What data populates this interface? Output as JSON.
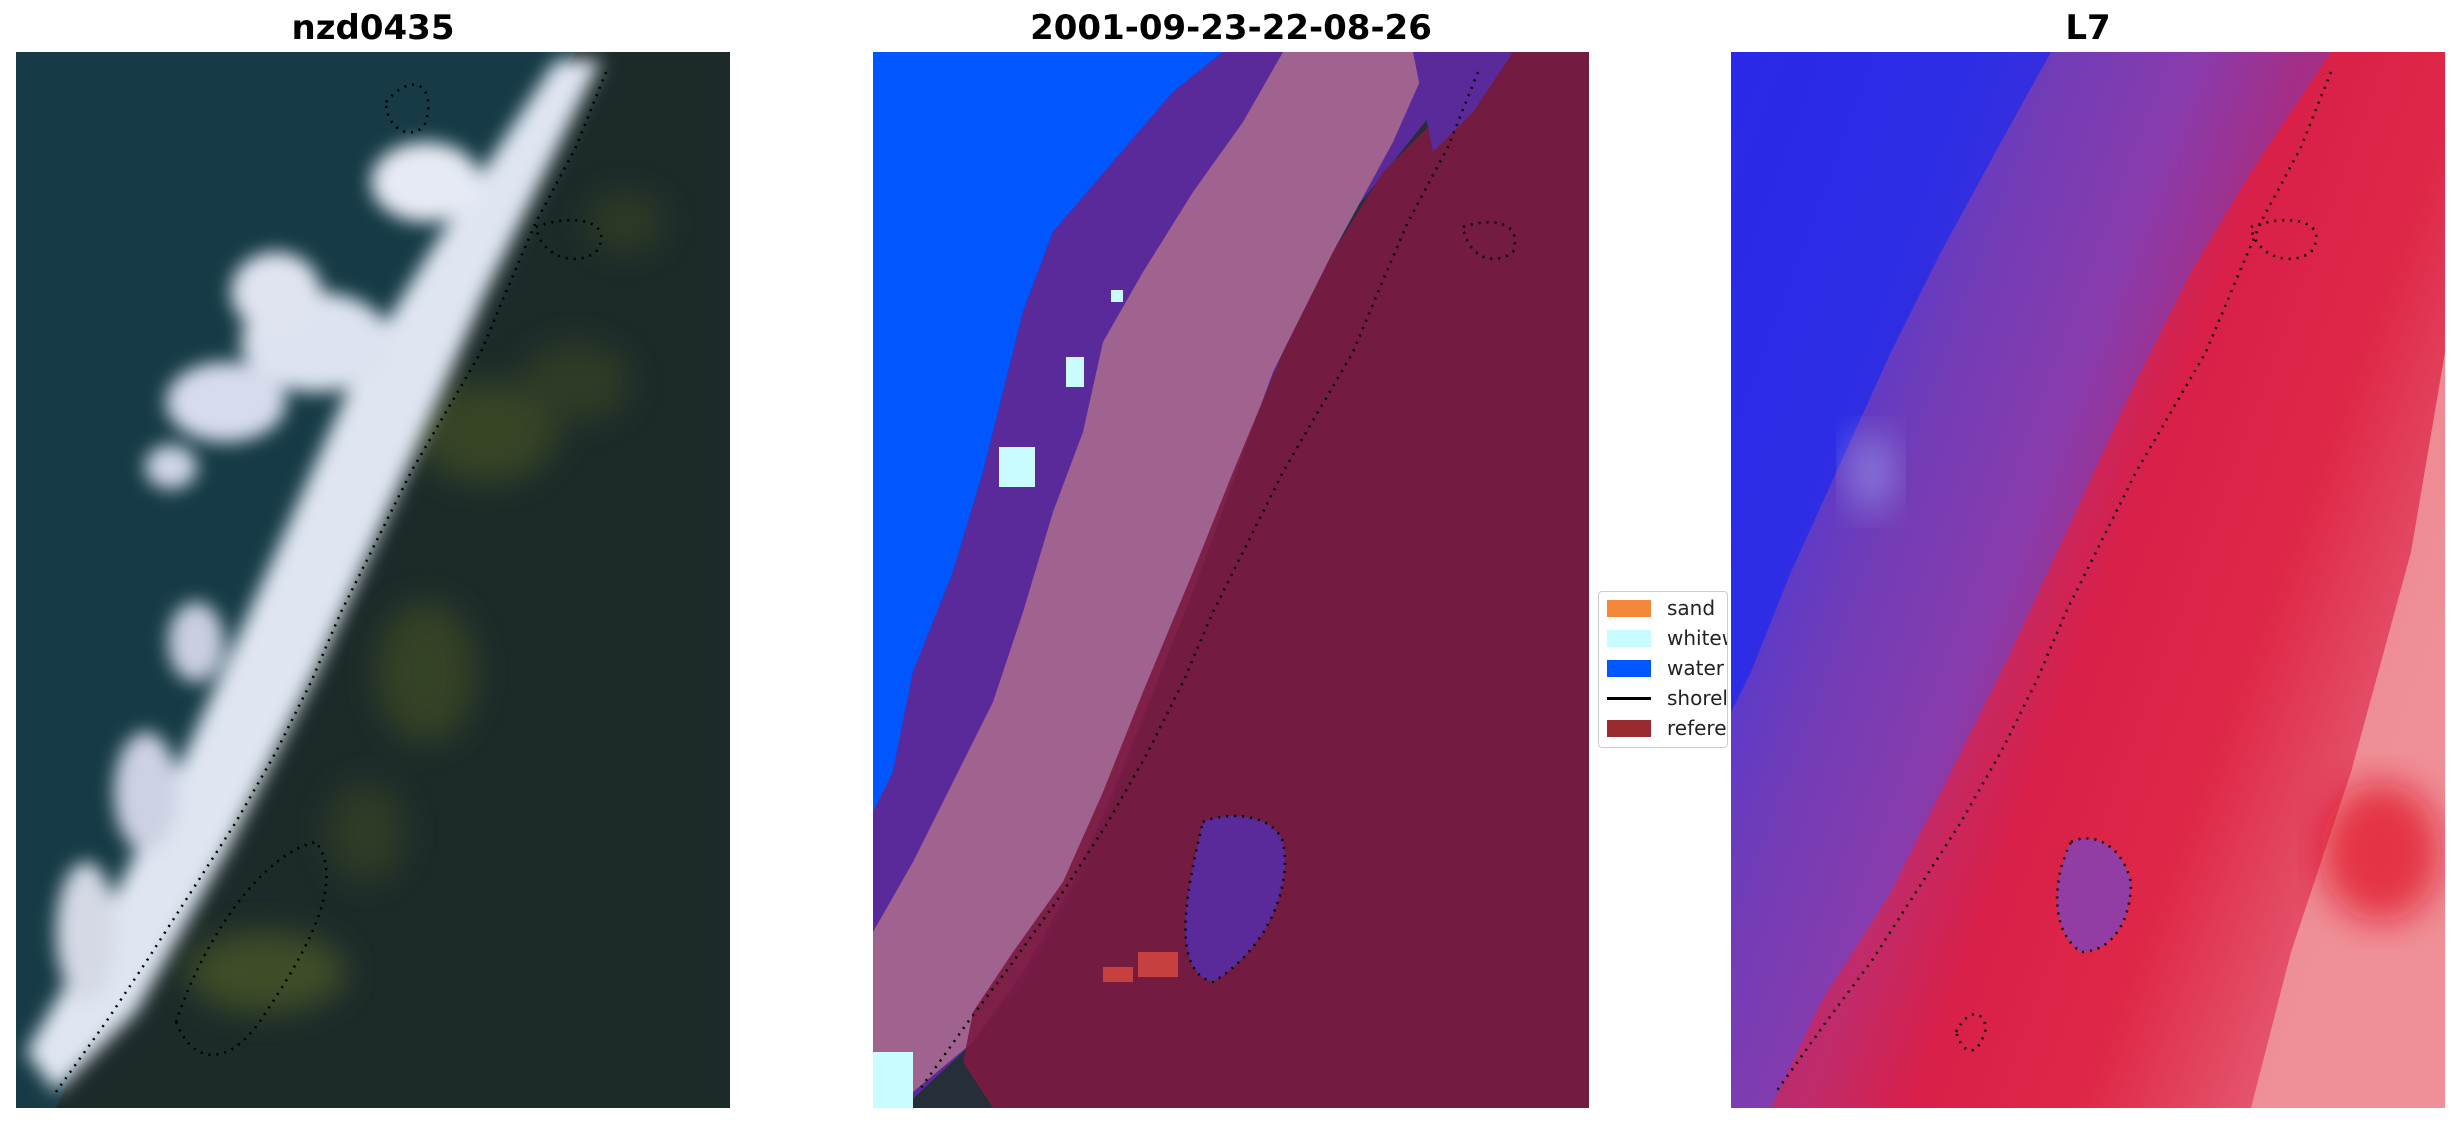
{
  "panels": [
    {
      "title": "nzd0435"
    },
    {
      "title": "2001-09-23-22-08-26"
    },
    {
      "title": "L7"
    }
  ],
  "legend": {
    "items": [
      {
        "label": "sand",
        "color": "#f4883a",
        "type": "patch"
      },
      {
        "label": "whitewater",
        "color": "#c9fcff",
        "type": "patch"
      },
      {
        "label": "water",
        "color": "#0057ff",
        "type": "patch"
      },
      {
        "label": "shoreline",
        "color": "#000000",
        "type": "line"
      },
      {
        "label": "reference shoreline buffer",
        "color": "#982a2f",
        "type": "patch"
      }
    ]
  },
  "colors": {
    "ocean_rgb": "#153a45",
    "land_rgb": "#1b2a2a",
    "water_class": "#0057ff",
    "whitewater_class": "#c9fcff",
    "whitewater_in_buffer": "#a36a96",
    "buffer_overlay": "#982a2f",
    "transition_class": "#5a2a9a",
    "index_water": "#2626e8",
    "index_land": "#e2183c"
  }
}
